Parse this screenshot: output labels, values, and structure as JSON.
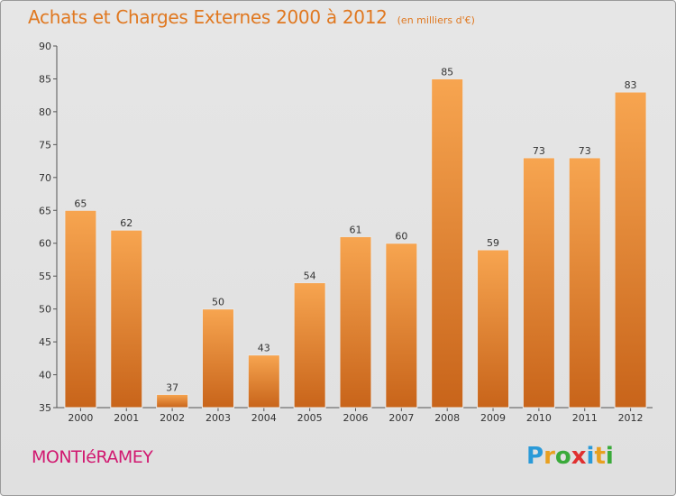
{
  "header": {
    "title": "Achats et Charges Externes 2000 à 2012",
    "subtitle": "(en milliers d'€)"
  },
  "commune": "MONTIéRAMEY",
  "logo": {
    "text": "Proxiti",
    "letters": [
      {
        "ch": "P",
        "color": "#2a9ad8"
      },
      {
        "ch": "r",
        "color": "#e8a020"
      },
      {
        "ch": "o",
        "color": "#3aaa3a"
      },
      {
        "ch": "x",
        "color": "#e03030"
      },
      {
        "ch": "i",
        "color": "#2a9ad8"
      },
      {
        "ch": "t",
        "color": "#e8a020"
      },
      {
        "ch": "i",
        "color": "#3aaa3a"
      }
    ]
  },
  "colors": {
    "bar_top": "#f7a550",
    "bar_bottom": "#c8641a",
    "title": "#e07820",
    "commune": "#d11870"
  },
  "chart_data": {
    "type": "bar",
    "categories": [
      "2000",
      "2001",
      "2002",
      "2003",
      "2004",
      "2005",
      "2006",
      "2007",
      "2008",
      "2009",
      "2010",
      "2011",
      "2012"
    ],
    "values": [
      65,
      62,
      37,
      50,
      43,
      54,
      61,
      60,
      85,
      59,
      73,
      73,
      83
    ],
    "ylim": [
      35,
      90
    ],
    "yticks": [
      35,
      40,
      45,
      50,
      55,
      60,
      65,
      70,
      75,
      80,
      85,
      90
    ],
    "grid": false,
    "data_labels": true
  }
}
